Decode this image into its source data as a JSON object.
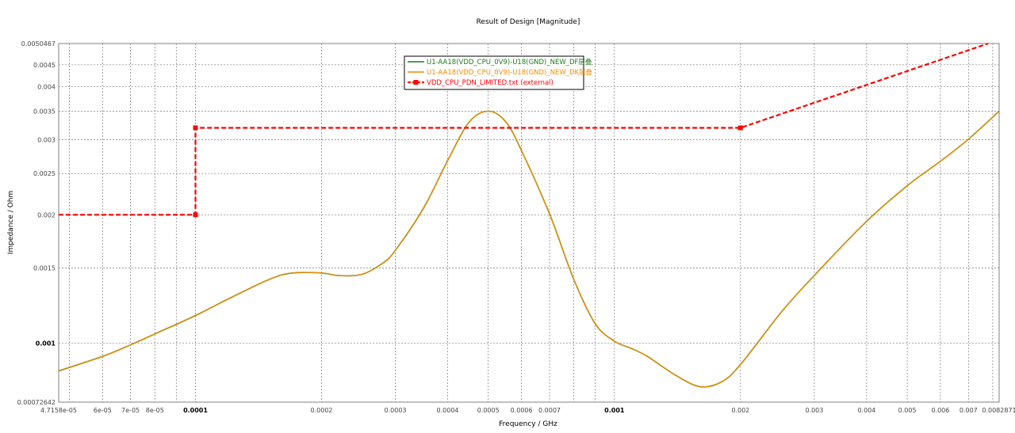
{
  "chart_data": {
    "type": "line",
    "title": "Result of Design [Magnitude]",
    "xlabel": "Frequency / GHz",
    "ylabel": "Impedance / Ohm",
    "x_scale": "log",
    "y_scale": "log",
    "xlim": [
      4.7158e-05,
      0.0082871
    ],
    "ylim": [
      0.00072642,
      0.0050467
    ],
    "grid": true,
    "legend_position": "top-center",
    "x_ticks": [
      {
        "value": 4.7158e-05,
        "label": "4.7158e-05",
        "major": false
      },
      {
        "value": 6e-05,
        "label": "6e-05",
        "major": false
      },
      {
        "value": 7e-05,
        "label": "7e-05",
        "major": false
      },
      {
        "value": 8e-05,
        "label": "8e-05",
        "major": false
      },
      {
        "value": 0.0001,
        "label": "0.0001",
        "major": true
      },
      {
        "value": 0.0002,
        "label": "0.0002",
        "major": false
      },
      {
        "value": 0.0003,
        "label": "0.0003",
        "major": false
      },
      {
        "value": 0.0004,
        "label": "0.0004",
        "major": false
      },
      {
        "value": 0.0005,
        "label": "0.0005",
        "major": false
      },
      {
        "value": 0.0006,
        "label": "0.0006",
        "major": false
      },
      {
        "value": 0.0007,
        "label": "0.0007",
        "major": false
      },
      {
        "value": 0.001,
        "label": "0.001",
        "major": true
      },
      {
        "value": 0.002,
        "label": "0.002",
        "major": false
      },
      {
        "value": 0.003,
        "label": "0.003",
        "major": false
      },
      {
        "value": 0.004,
        "label": "0.004",
        "major": false
      },
      {
        "value": 0.005,
        "label": "0.005",
        "major": false
      },
      {
        "value": 0.006,
        "label": "0.006",
        "major": false
      },
      {
        "value": 0.007,
        "label": "0.007",
        "major": false
      },
      {
        "value": 0.0082871,
        "label": "0.0082871",
        "major": false
      }
    ],
    "x_minor_grid": [
      5e-05,
      9e-05,
      0.0008,
      0.0009,
      0.008
    ],
    "y_ticks": [
      {
        "value": 0.00072642,
        "label": "0.00072642",
        "major": false
      },
      {
        "value": 0.001,
        "label": "0.001",
        "major": true
      },
      {
        "value": 0.0015,
        "label": "0.0015",
        "major": false
      },
      {
        "value": 0.002,
        "label": "0.002",
        "major": false
      },
      {
        "value": 0.0025,
        "label": "0.0025",
        "major": false
      },
      {
        "value": 0.003,
        "label": "0.003",
        "major": false
      },
      {
        "value": 0.0035,
        "label": "0.0035",
        "major": false
      },
      {
        "value": 0.004,
        "label": "0.004",
        "major": false
      },
      {
        "value": 0.0045,
        "label": "0.0045",
        "major": false
      },
      {
        "value": 0.0050467,
        "label": "0.0050467",
        "major": false
      }
    ],
    "series": [
      {
        "name": "U1-AA18(VDD_CPU_0V9)-U18(GND)_NEW_DF层叠",
        "color": "#1a7a1a",
        "style": "solid",
        "x": [
          4.7158e-05,
          6e-05,
          7e-05,
          8e-05,
          0.0001,
          0.00012,
          0.00015,
          0.00017,
          0.0002,
          0.00022,
          0.00025,
          0.00028,
          0.0003,
          0.00035,
          0.0004,
          0.00045,
          0.0005,
          0.00055,
          0.0006,
          0.0007,
          0.0008,
          0.0009,
          0.001,
          0.0011,
          0.0012,
          0.0014,
          0.0016,
          0.0018,
          0.002,
          0.0025,
          0.003,
          0.004,
          0.005,
          0.006,
          0.007,
          0.0082871
        ],
        "y": [
          0.00086,
          0.00093,
          0.00099,
          0.00105,
          0.00116,
          0.00127,
          0.00141,
          0.00146,
          0.00146,
          0.00144,
          0.00145,
          0.00154,
          0.00165,
          0.00207,
          0.00268,
          0.0033,
          0.0035,
          0.00331,
          0.00283,
          0.00201,
          0.00141,
          0.00111,
          0.00101,
          0.00097,
          0.00093,
          0.00084,
          0.00079,
          0.00081,
          0.00089,
          0.00118,
          0.00144,
          0.00193,
          0.00234,
          0.00267,
          0.00301,
          0.0035
        ]
      },
      {
        "name": "U1-AA18(VDD_CPU_0V9)-U18(GND)_NEW_DK层叠",
        "color": "#f28c00",
        "style": "solid",
        "x": [
          4.7158e-05,
          6e-05,
          7e-05,
          8e-05,
          0.0001,
          0.00012,
          0.00015,
          0.00017,
          0.0002,
          0.00022,
          0.00025,
          0.00028,
          0.0003,
          0.00035,
          0.0004,
          0.00045,
          0.0005,
          0.00055,
          0.0006,
          0.0007,
          0.0008,
          0.0009,
          0.001,
          0.0011,
          0.0012,
          0.0014,
          0.0016,
          0.0018,
          0.002,
          0.0025,
          0.003,
          0.004,
          0.005,
          0.006,
          0.007,
          0.0082871
        ],
        "y": [
          0.00086,
          0.00093,
          0.00099,
          0.00105,
          0.00116,
          0.00127,
          0.00141,
          0.00146,
          0.00146,
          0.00144,
          0.00145,
          0.00154,
          0.00165,
          0.00207,
          0.00268,
          0.0033,
          0.0035,
          0.00331,
          0.00283,
          0.00201,
          0.00141,
          0.00111,
          0.00101,
          0.00097,
          0.00093,
          0.00084,
          0.00079,
          0.00081,
          0.00089,
          0.00118,
          0.00144,
          0.00193,
          0.00234,
          0.00267,
          0.00301,
          0.0035
        ]
      },
      {
        "name": "VDD_CPU_PDN_LIMITED.txt (external)",
        "color": "#ff0000",
        "style": "dashed",
        "markers": true,
        "x": [
          4.7158e-05,
          0.0001,
          0.0001,
          0.002,
          0.0078
        ],
        "y": [
          0.002,
          0.002,
          0.0032,
          0.0032,
          0.0050467
        ],
        "marker_indices": [
          1,
          2,
          3
        ]
      }
    ]
  }
}
